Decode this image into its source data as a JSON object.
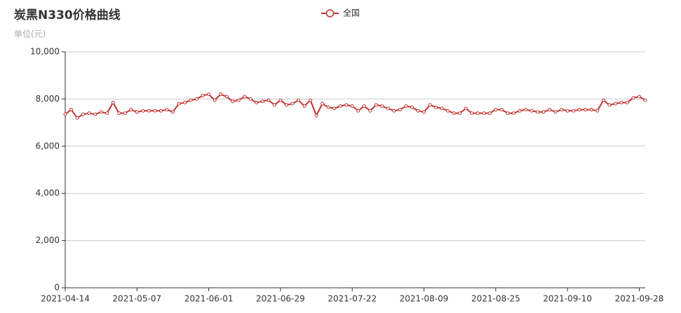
{
  "chart_data": {
    "type": "line",
    "title": "炭黑N330价格曲线",
    "subtitle": "单位(元)",
    "categories": [
      "2021-04-14",
      null,
      null,
      null,
      null,
      null,
      null,
      null,
      null,
      null,
      null,
      null,
      "2021-05-07",
      null,
      null,
      null,
      null,
      null,
      null,
      null,
      null,
      null,
      null,
      null,
      "2021-06-01",
      null,
      null,
      null,
      null,
      null,
      null,
      null,
      null,
      null,
      null,
      null,
      "2021-06-29",
      null,
      null,
      null,
      null,
      null,
      null,
      null,
      null,
      null,
      null,
      null,
      "2021-07-22",
      null,
      null,
      null,
      null,
      null,
      null,
      null,
      null,
      null,
      null,
      null,
      "2021-08-09",
      null,
      null,
      null,
      null,
      null,
      null,
      null,
      null,
      null,
      null,
      null,
      "2021-08-25",
      null,
      null,
      null,
      null,
      null,
      null,
      null,
      null,
      null,
      null,
      null,
      "2021-09-10",
      null,
      null,
      null,
      null,
      null,
      null,
      null,
      null,
      null,
      null,
      null,
      "2021-09-28",
      null
    ],
    "series": [
      {
        "name": "全国",
        "color": "#c23531",
        "values": [
          7350,
          7550,
          7200,
          7350,
          7400,
          7350,
          7450,
          7400,
          7850,
          7400,
          7400,
          7550,
          7450,
          7500,
          7500,
          7500,
          7500,
          7550,
          7450,
          7800,
          7850,
          7950,
          8000,
          8150,
          8200,
          7950,
          8200,
          8100,
          7900,
          7950,
          8100,
          8000,
          7850,
          7900,
          7950,
          7750,
          7950,
          7750,
          7800,
          7950,
          7700,
          7950,
          7300,
          7800,
          7650,
          7600,
          7700,
          7750,
          7700,
          7500,
          7700,
          7500,
          7750,
          7700,
          7600,
          7500,
          7550,
          7700,
          7650,
          7500,
          7450,
          7750,
          7650,
          7600,
          7500,
          7400,
          7400,
          7600,
          7400,
          7400,
          7400,
          7400,
          7550,
          7550,
          7400,
          7400,
          7500,
          7550,
          7500,
          7450,
          7450,
          7550,
          7450,
          7550,
          7500,
          7500,
          7550,
          7550,
          7550,
          7500,
          7950,
          7750,
          7800,
          7850,
          7850,
          8050,
          8100,
          7950
        ]
      }
    ],
    "ylim": [
      0,
      10000
    ],
    "yticks": [
      0,
      {
        "value": 2000,
        "label": "2,000"
      },
      {
        "value": 4000,
        "label": "4,000"
      },
      {
        "value": 6000,
        "label": "6,000"
      },
      {
        "value": 8000,
        "label": "8,000"
      },
      {
        "value": 10000,
        "label": "10,000"
      }
    ],
    "grid": true
  }
}
